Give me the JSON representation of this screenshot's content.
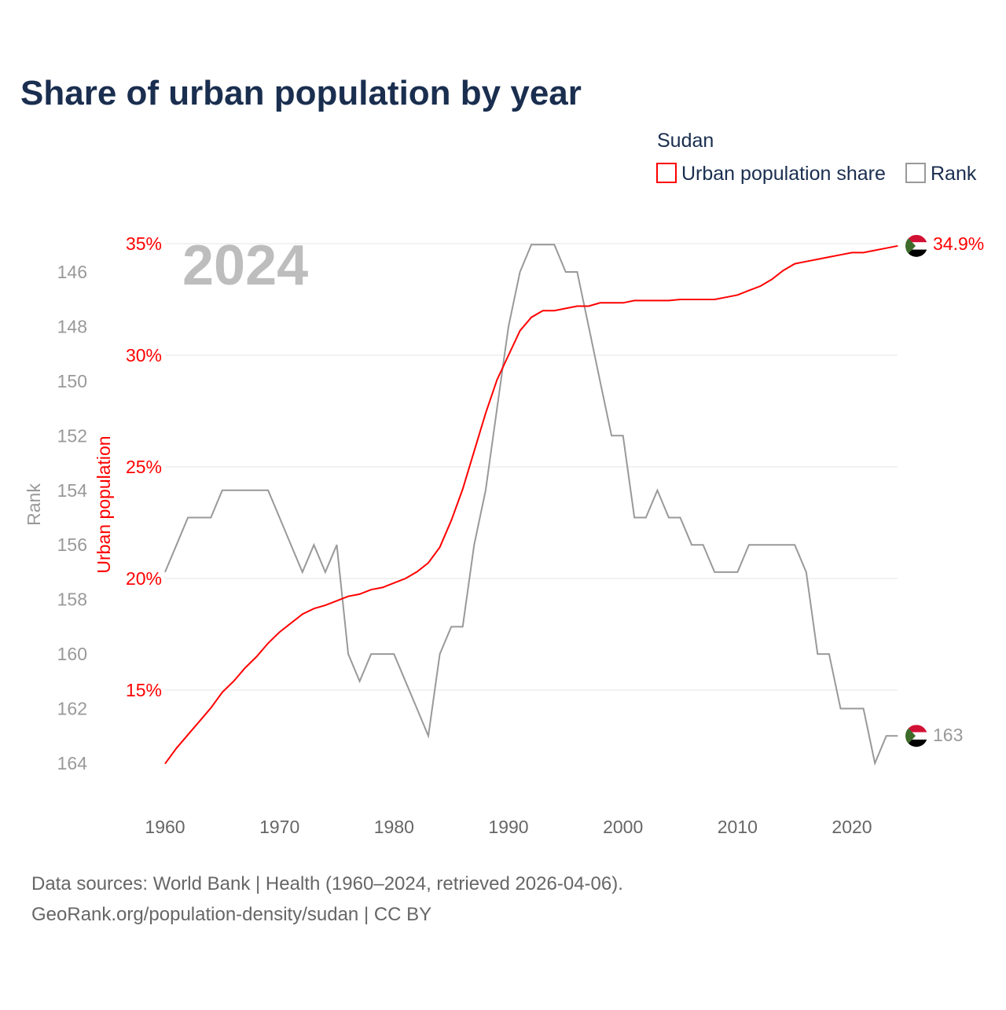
{
  "title": "Share of urban population by year",
  "legend": {
    "country": "Sudan",
    "items": [
      {
        "label": "Urban population share",
        "color": "#ff0000"
      },
      {
        "label": "Rank",
        "color": "#999999"
      }
    ]
  },
  "year_watermark": "2024",
  "source_lines": [
    "Data sources: World Bank | Health (1960–2024, retrieved 2026-04-06).",
    "GeoRank.org/population-density/sudan | CC BY"
  ],
  "end_labels": {
    "urban": "34.9%",
    "rank": "163"
  },
  "chart_data": {
    "type": "line",
    "title": "Share of urban population by year",
    "xlabel": "",
    "ylabel_left_outer": "Rank",
    "ylabel_left_inner": "Urban population",
    "x_ticks": [
      "1960",
      "1970",
      "1980",
      "1990",
      "2000",
      "2010",
      "2020"
    ],
    "urban_ticks": [
      {
        "v": 35,
        "label": "35%"
      },
      {
        "v": 30,
        "label": "30%"
      },
      {
        "v": 25,
        "label": "25%"
      },
      {
        "v": 20,
        "label": "20%"
      },
      {
        "v": 15,
        "label": "15%"
      }
    ],
    "rank_ticks": [
      "146",
      "148",
      "150",
      "152",
      "154",
      "156",
      "158",
      "160",
      "162",
      "164"
    ],
    "urban_ylim": [
      11.7,
      35
    ],
    "rank_ylim": [
      145,
      164
    ],
    "grid": true,
    "x": [
      1960,
      1961,
      1962,
      1963,
      1964,
      1965,
      1966,
      1967,
      1968,
      1969,
      1970,
      1971,
      1972,
      1973,
      1974,
      1975,
      1976,
      1977,
      1978,
      1979,
      1980,
      1981,
      1982,
      1983,
      1984,
      1985,
      1986,
      1987,
      1988,
      1989,
      1990,
      1991,
      1992,
      1993,
      1994,
      1995,
      1996,
      1997,
      1998,
      1999,
      2000,
      2001,
      2002,
      2003,
      2004,
      2005,
      2006,
      2007,
      2008,
      2009,
      2010,
      2011,
      2012,
      2013,
      2014,
      2015,
      2016,
      2017,
      2018,
      2019,
      2020,
      2021,
      2022,
      2023,
      2024
    ],
    "series": [
      {
        "name": "Urban population share",
        "color": "#ff0000",
        "axis": "urban",
        "values": [
          11.7,
          12.4,
          13.0,
          13.6,
          14.2,
          14.9,
          15.4,
          16.0,
          16.5,
          17.1,
          17.6,
          18.0,
          18.4,
          18.65,
          18.8,
          19.0,
          19.2,
          19.3,
          19.5,
          19.6,
          19.8,
          20.0,
          20.3,
          20.7,
          21.4,
          22.6,
          24.0,
          25.7,
          27.4,
          28.9,
          30.0,
          31.1,
          31.7,
          32.0,
          32.0,
          32.1,
          32.2,
          32.2,
          32.35,
          32.35,
          32.35,
          32.45,
          32.45,
          32.45,
          32.45,
          32.5,
          32.5,
          32.5,
          32.5,
          32.6,
          32.7,
          32.9,
          33.1,
          33.4,
          33.8,
          34.1,
          34.2,
          34.3,
          34.4,
          34.5,
          34.6,
          34.6,
          34.7,
          34.8,
          34.9
        ]
      },
      {
        "name": "Rank",
        "color": "#999999",
        "axis": "rank",
        "values": [
          157,
          156,
          155,
          155,
          155,
          154,
          154,
          154,
          154,
          154,
          155,
          156,
          157,
          156,
          157,
          156,
          160,
          161,
          160,
          160,
          160,
          161,
          162,
          163,
          160,
          159,
          159,
          156,
          154,
          151,
          148,
          146,
          145,
          145,
          145,
          146,
          146,
          148,
          150,
          152,
          152,
          155,
          155,
          154,
          155,
          155,
          156,
          156,
          157,
          157,
          157,
          156,
          156,
          156,
          156,
          156,
          157,
          160,
          160,
          162,
          162,
          162,
          164,
          163,
          163
        ]
      }
    ]
  }
}
